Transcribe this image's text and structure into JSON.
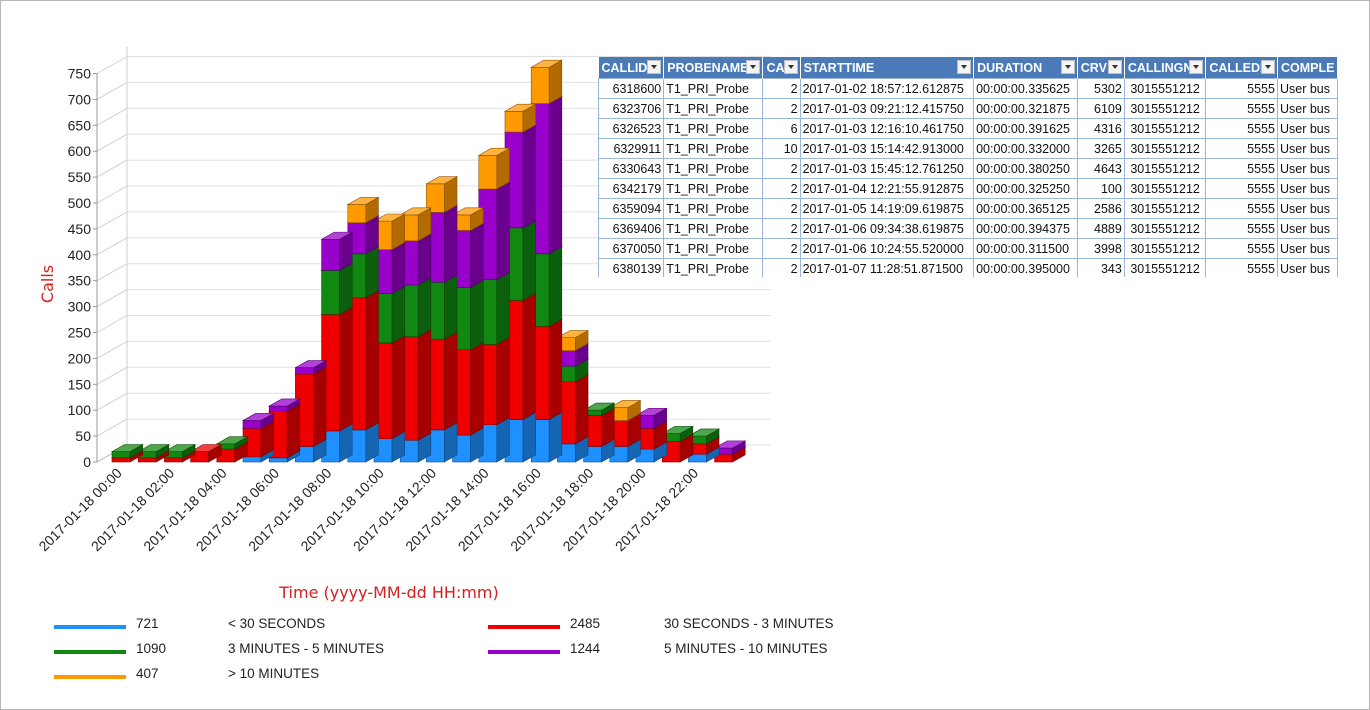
{
  "chart_data": {
    "type": "bar",
    "stacked": true,
    "three_d": true,
    "title": "",
    "xlabel": "Time (yyyy-MM-dd HH:mm)",
    "ylabel": "Calls",
    "ylim": [
      0,
      750
    ],
    "yticks": [
      "0",
      "50",
      "100",
      "150",
      "200",
      "250",
      "300",
      "350",
      "400",
      "450",
      "500",
      "550",
      "600",
      "650",
      "700",
      "750"
    ],
    "x_tick_labels": [
      "2017-01-18 00:00",
      "2017-01-18 02:00",
      "2017-01-18 04:00",
      "2017-01-18 06:00",
      "2017-01-18 08:00",
      "2017-01-18 10:00",
      "2017-01-18 12:00",
      "2017-01-18 14:00",
      "2017-01-18 16:00",
      "2017-01-18 18:00",
      "2017-01-18 20:00",
      "2017-01-18 22:00"
    ],
    "grid": true,
    "legend_position": "bottom",
    "categories": [
      "00:00",
      "01:00",
      "02:00",
      "03:00",
      "04:00",
      "05:00",
      "06:00",
      "07:00",
      "08:00",
      "09:00",
      "10:00",
      "11:00",
      "12:00",
      "13:00",
      "14:00",
      "15:00",
      "16:00",
      "17:00",
      "18:00",
      "19:00",
      "20:00",
      "21:00",
      "22:00",
      "23:00"
    ],
    "series": [
      {
        "name": "< 30 SECONDS",
        "count": "721",
        "color": "#1e90ff",
        "values": [
          0,
          0,
          0,
          0,
          0,
          10,
          8,
          30,
          60,
          62,
          45,
          42,
          62,
          52,
          72,
          82,
          82,
          35,
          30,
          30,
          25,
          0,
          15,
          0
        ]
      },
      {
        "name": "30 SECONDS - 3 MINUTES",
        "count": "2485",
        "color": "#ee0000",
        "values": [
          8,
          8,
          8,
          20,
          25,
          55,
          90,
          140,
          225,
          255,
          185,
          200,
          175,
          165,
          155,
          230,
          180,
          120,
          60,
          50,
          40,
          40,
          20,
          15
        ]
      },
      {
        "name": "3 MINUTES - 5 MINUTES",
        "count": "1090",
        "color": "#118811",
        "values": [
          12,
          12,
          12,
          0,
          10,
          0,
          0,
          0,
          85,
          85,
          95,
          100,
          110,
          120,
          125,
          140,
          140,
          30,
          10,
          0,
          0,
          15,
          15,
          0
        ]
      },
      {
        "name": "5 MINUTES - 10 MINUTES",
        "count": "1244",
        "color": "#9900cc",
        "values": [
          0,
          0,
          0,
          0,
          0,
          15,
          10,
          12,
          60,
          60,
          85,
          85,
          135,
          110,
          175,
          185,
          290,
          30,
          0,
          0,
          25,
          0,
          0,
          12
        ]
      },
      {
        "name": "> 10 MINUTES",
        "count": "407",
        "color": "#ff9900",
        "values": [
          0,
          0,
          0,
          0,
          0,
          0,
          0,
          0,
          0,
          35,
          55,
          50,
          55,
          30,
          65,
          40,
          70,
          25,
          0,
          25,
          0,
          0,
          0,
          0
        ]
      }
    ]
  },
  "legend": [
    {
      "count": "721",
      "label": "< 30 SECONDS",
      "color": "#1e90ff"
    },
    {
      "count": "2485",
      "label": "30 SECONDS - 3 MINUTES",
      "color": "#ee0000"
    },
    {
      "count": "1090",
      "label": "3 MINUTES - 5 MINUTES",
      "color": "#118811"
    },
    {
      "count": "1244",
      "label": "5 MINUTES - 10 MINUTES",
      "color": "#9900cc"
    },
    {
      "count": "407",
      "label": "> 10 MINUTES",
      "color": "#ff9900"
    }
  ],
  "table": {
    "header_color": "#4a7ab8",
    "columns": [
      "CALLID",
      "PROBENAME",
      "CA",
      "STARTTIME",
      "DURATION",
      "CRV",
      "CALLINGN",
      "CALLEDN",
      "COMPLE"
    ],
    "rows": [
      [
        "6318600",
        "T1_PRI_Probe",
        "2",
        "2017-01-02 18:57:12.612875",
        "00:00:00.335625",
        "5302",
        "3015551212",
        "5555",
        "User bus"
      ],
      [
        "6323706",
        "T1_PRI_Probe",
        "2",
        "2017-01-03 09:21:12.415750",
        "00:00:00.321875",
        "6109",
        "3015551212",
        "5555",
        "User bus"
      ],
      [
        "6326523",
        "T1_PRI_Probe",
        "6",
        "2017-01-03 12:16:10.461750",
        "00:00:00.391625",
        "4316",
        "3015551212",
        "5555",
        "User bus"
      ],
      [
        "6329911",
        "T1_PRI_Probe",
        "10",
        "2017-01-03 15:14:42.913000",
        "00:00:00.332000",
        "3265",
        "3015551212",
        "5555",
        "User bus"
      ],
      [
        "6330643",
        "T1_PRI_Probe",
        "2",
        "2017-01-03 15:45:12.761250",
        "00:00:00.380250",
        "4643",
        "3015551212",
        "5555",
        "User bus"
      ],
      [
        "6342179",
        "T1_PRI_Probe",
        "2",
        "2017-01-04 12:21:55.912875",
        "00:00:00.325250",
        "100",
        "3015551212",
        "5555",
        "User bus"
      ],
      [
        "6359094",
        "T1_PRI_Probe",
        "2",
        "2017-01-05 14:19:09.619875",
        "00:00:00.365125",
        "2586",
        "3015551212",
        "5555",
        "User bus"
      ],
      [
        "6369406",
        "T1_PRI_Probe",
        "2",
        "2017-01-06 09:34:38.619875",
        "00:00:00.394375",
        "4889",
        "3015551212",
        "5555",
        "User bus"
      ],
      [
        "6370050",
        "T1_PRI_Probe",
        "2",
        "2017-01-06 10:24:55.520000",
        "00:00:00.311500",
        "3998",
        "3015551212",
        "5555",
        "User bus"
      ],
      [
        "6380139",
        "T1_PRI_Probe",
        "2",
        "2017-01-07 11:28:51.871500",
        "00:00:00.395000",
        "343",
        "3015551212",
        "5555",
        "User bus"
      ]
    ]
  }
}
